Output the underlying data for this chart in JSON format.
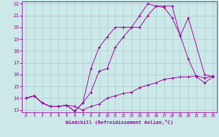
{
  "background_color": "#cce8e8",
  "grid_color": "#aacccc",
  "line_color": "#990099",
  "xlabel": "Windchill (Refroidissement éolien,°C)",
  "xlim": [
    -0.5,
    23.5
  ],
  "ylim": [
    12.8,
    22.2
  ],
  "yticks": [
    13,
    14,
    15,
    16,
    17,
    18,
    19,
    20,
    21,
    22
  ],
  "xticks": [
    0,
    1,
    2,
    3,
    4,
    5,
    6,
    7,
    8,
    9,
    10,
    11,
    12,
    13,
    14,
    15,
    16,
    17,
    18,
    19,
    20,
    21,
    22,
    23
  ],
  "line1_x": [
    0,
    1,
    2,
    3,
    4,
    5,
    6,
    7,
    8,
    9,
    10,
    11,
    12,
    13,
    14,
    15,
    16,
    17,
    18,
    19,
    20,
    21,
    22,
    23
  ],
  "line1_y": [
    14.0,
    14.2,
    13.6,
    13.3,
    13.3,
    13.4,
    13.3,
    13.0,
    13.3,
    13.5,
    14.0,
    14.2,
    14.4,
    14.5,
    14.9,
    15.1,
    15.3,
    15.6,
    15.7,
    15.8,
    15.8,
    15.9,
    15.7,
    15.9
  ],
  "line2_x": [
    0,
    1,
    2,
    3,
    4,
    5,
    6,
    7,
    8,
    9,
    10,
    11,
    12,
    13,
    14,
    15,
    16,
    17,
    18,
    19,
    20,
    21,
    22,
    23
  ],
  "line2_y": [
    14.0,
    14.2,
    13.6,
    13.3,
    13.3,
    13.4,
    12.9,
    13.6,
    14.5,
    16.3,
    16.5,
    18.3,
    19.2,
    20.0,
    20.0,
    21.0,
    21.8,
    21.7,
    20.8,
    19.3,
    17.3,
    15.8,
    15.3,
    15.8
  ],
  "line3_x": [
    0,
    1,
    2,
    3,
    4,
    5,
    6,
    7,
    8,
    9,
    10,
    11,
    12,
    13,
    14,
    15,
    16,
    17,
    18,
    19,
    20,
    22,
    23
  ],
  "line3_y": [
    14.0,
    14.2,
    13.6,
    13.3,
    13.3,
    13.4,
    12.9,
    13.6,
    16.5,
    18.3,
    19.2,
    20.0,
    20.0,
    20.0,
    21.0,
    22.0,
    21.8,
    21.8,
    21.8,
    19.3,
    20.8,
    16.0,
    15.8
  ]
}
